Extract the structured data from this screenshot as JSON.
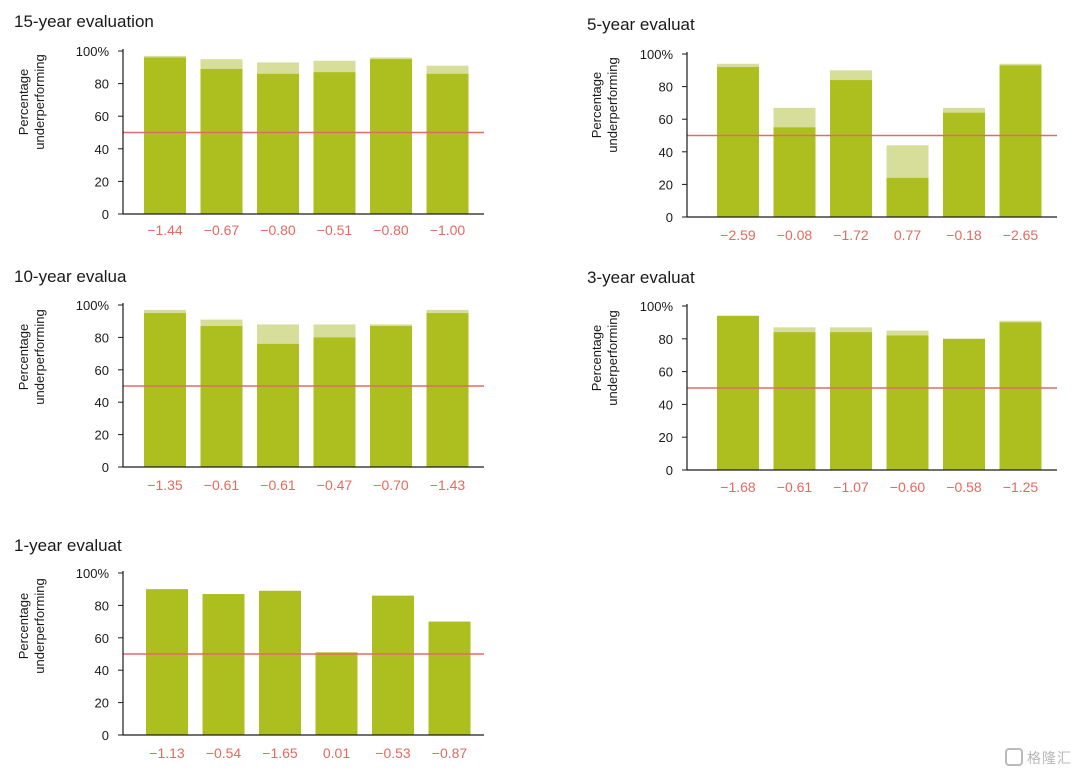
{
  "colors": {
    "bar": "#acbf1e",
    "bar_light": "#d7de9a",
    "reference_line": "#e06a6a",
    "label": "#e5695f",
    "axis": "#1a1a1a"
  },
  "watermark": {
    "text": "格隆汇",
    "icon": "G-logo-icon"
  },
  "chart_data": [
    {
      "type": "bar",
      "title": "15-year evaluation",
      "ylabel": "Percentage\nunderperforming",
      "ylim": [
        0,
        100
      ],
      "yticks": [
        "0",
        "20",
        "40",
        "60",
        "80",
        "100%"
      ],
      "reference_line": 50,
      "series": [
        {
          "values": [
            96,
            89,
            86,
            87,
            95,
            86
          ]
        },
        {
          "values": [
            97,
            95,
            93,
            94,
            96,
            91
          ]
        }
      ],
      "categories": [
        "−1.44",
        "−0.67",
        "−0.80",
        "−0.51",
        "−0.80",
        "−1.00"
      ]
    },
    {
      "type": "bar",
      "title": "5-year evaluat",
      "ylabel": "Percentage\nunderperforming",
      "ylim": [
        0,
        100
      ],
      "yticks": [
        "0",
        "20",
        "40",
        "60",
        "80",
        "100%"
      ],
      "reference_line": 50,
      "series": [
        {
          "values": [
            92,
            55,
            84,
            24,
            64,
            93
          ]
        },
        {
          "values": [
            94,
            67,
            90,
            44,
            67,
            94
          ]
        }
      ],
      "categories": [
        "−2.59",
        "−0.08",
        "−1.72",
        "0.77",
        "−0.18",
        "−2.65"
      ]
    },
    {
      "type": "bar",
      "title": "10-year evalua",
      "ylabel": "Percentage\nunderperforming",
      "ylim": [
        0,
        100
      ],
      "yticks": [
        "0",
        "20",
        "40",
        "60",
        "80",
        "100%"
      ],
      "reference_line": 50,
      "series": [
        {
          "values": [
            95,
            87,
            76,
            80,
            87,
            95
          ]
        },
        {
          "values": [
            97,
            91,
            88,
            88,
            88,
            97
          ]
        }
      ],
      "categories": [
        "−1.35",
        "−0.61",
        "−0.61",
        "−0.47",
        "−0.70",
        "−1.43"
      ]
    },
    {
      "type": "bar",
      "title": "3-year evaluat",
      "ylabel": "Percentage\nunderperforming",
      "ylim": [
        0,
        100
      ],
      "yticks": [
        "0",
        "20",
        "40",
        "60",
        "80",
        "100%"
      ],
      "reference_line": 50,
      "series": [
        {
          "values": [
            94,
            84,
            84,
            82,
            80,
            90
          ]
        },
        {
          "values": [
            94,
            87,
            87,
            85,
            80,
            91
          ]
        }
      ],
      "categories": [
        "−1.68",
        "−0.61",
        "−1.07",
        "−0.60",
        "−0.58",
        "−1.25"
      ]
    },
    {
      "type": "bar",
      "title": "1-year evaluat",
      "ylabel": "Percentage\nunderperforming",
      "ylim": [
        0,
        100
      ],
      "yticks": [
        "0",
        "20",
        "40",
        "60",
        "80",
        "100%"
      ],
      "reference_line": 50,
      "series": [
        {
          "values": [
            90,
            87,
            89,
            51,
            86,
            70
          ]
        },
        {
          "values": [
            90,
            87,
            89,
            51,
            86,
            70
          ]
        }
      ],
      "categories": [
        "−1.13",
        "−0.54",
        "−1.65",
        "0.01",
        "−0.53",
        "−0.87"
      ]
    }
  ]
}
